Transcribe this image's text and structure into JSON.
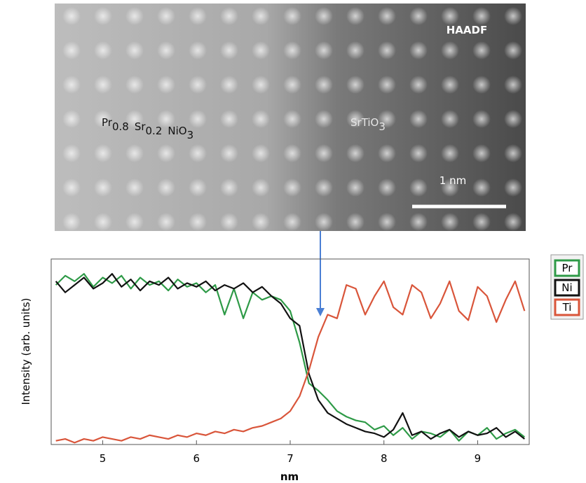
{
  "image": {
    "label": "HAADF",
    "left_material": [
      [
        "Pr",
        "0.8"
      ],
      [
        "Sr",
        "0.2"
      ],
      [
        "NiO",
        "3"
      ]
    ],
    "right_material": [
      [
        "SrTiO",
        "3"
      ]
    ],
    "scale_bar": "1 nm"
  },
  "chart_data": {
    "type": "line",
    "xlabel": "nm",
    "ylabel": "Intensity (arb. units)",
    "xlim": [
      4.45,
      9.55
    ],
    "xticks": [
      5,
      6,
      7,
      8,
      9
    ],
    "ylim": [
      0,
      1
    ],
    "x": [
      4.5,
      4.6,
      4.7,
      4.8,
      4.9,
      5.0,
      5.1,
      5.2,
      5.3,
      5.4,
      5.5,
      5.6,
      5.7,
      5.8,
      5.9,
      6.0,
      6.1,
      6.2,
      6.3,
      6.4,
      6.5,
      6.6,
      6.7,
      6.8,
      6.9,
      7.0,
      7.1,
      7.2,
      7.3,
      7.4,
      7.5,
      7.6,
      7.7,
      7.8,
      7.9,
      8.0,
      8.1,
      8.2,
      8.3,
      8.4,
      8.5,
      8.6,
      8.7,
      8.8,
      8.9,
      9.0,
      9.1,
      9.2,
      9.3,
      9.4,
      9.5
    ],
    "series": [
      {
        "name": "Pr",
        "color": "#2e9a47",
        "values": [
          0.86,
          0.91,
          0.88,
          0.92,
          0.85,
          0.9,
          0.87,
          0.91,
          0.84,
          0.9,
          0.86,
          0.88,
          0.83,
          0.89,
          0.85,
          0.87,
          0.82,
          0.86,
          0.7,
          0.84,
          0.68,
          0.82,
          0.78,
          0.8,
          0.78,
          0.72,
          0.55,
          0.33,
          0.29,
          0.24,
          0.18,
          0.15,
          0.13,
          0.12,
          0.08,
          0.1,
          0.05,
          0.09,
          0.03,
          0.07,
          0.06,
          0.04,
          0.08,
          0.02,
          0.07,
          0.05,
          0.09,
          0.03,
          0.06,
          0.08,
          0.04
        ]
      },
      {
        "name": "Ni",
        "color": "#111111",
        "values": [
          0.88,
          0.82,
          0.86,
          0.9,
          0.84,
          0.87,
          0.92,
          0.85,
          0.89,
          0.83,
          0.88,
          0.86,
          0.9,
          0.84,
          0.87,
          0.85,
          0.88,
          0.83,
          0.86,
          0.84,
          0.87,
          0.82,
          0.85,
          0.8,
          0.76,
          0.68,
          0.64,
          0.38,
          0.24,
          0.17,
          0.14,
          0.11,
          0.09,
          0.07,
          0.06,
          0.04,
          0.08,
          0.17,
          0.05,
          0.07,
          0.03,
          0.06,
          0.08,
          0.04,
          0.07,
          0.05,
          0.06,
          0.09,
          0.04,
          0.07,
          0.03
        ]
      },
      {
        "name": "Ti",
        "color": "#d9553a",
        "values": [
          0.02,
          0.03,
          0.01,
          0.03,
          0.02,
          0.04,
          0.03,
          0.02,
          0.04,
          0.03,
          0.05,
          0.04,
          0.03,
          0.05,
          0.04,
          0.06,
          0.05,
          0.07,
          0.06,
          0.08,
          0.07,
          0.09,
          0.1,
          0.12,
          0.14,
          0.18,
          0.26,
          0.4,
          0.58,
          0.7,
          0.68,
          0.86,
          0.84,
          0.7,
          0.8,
          0.88,
          0.74,
          0.7,
          0.86,
          0.82,
          0.68,
          0.76,
          0.88,
          0.72,
          0.67,
          0.85,
          0.8,
          0.66,
          0.78,
          0.88,
          0.72
        ]
      }
    ]
  }
}
